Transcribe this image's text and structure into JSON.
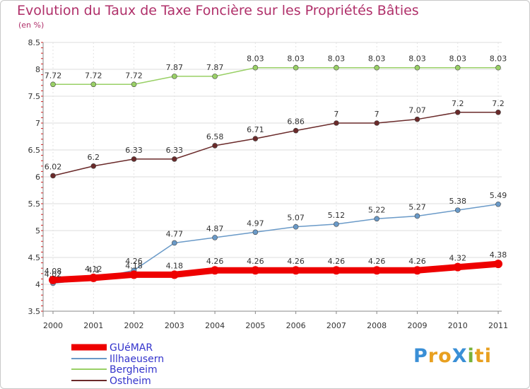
{
  "header": {
    "title": "Evolution du Taux de Taxe Foncière sur les Propriétés Bâties",
    "subtitle": "(en %)"
  },
  "chart_data": {
    "type": "line",
    "title": "Evolution du Taux de Taxe Foncière sur les Propriétés Bâties",
    "ylabel": "(en %)",
    "x": [
      "2000",
      "2001",
      "2002",
      "2003",
      "2004",
      "2005",
      "2006",
      "2007",
      "2008",
      "2009",
      "2010",
      "2011"
    ],
    "ylim": [
      3.5,
      8.5
    ],
    "yticks": [
      3.5,
      4,
      4.5,
      5,
      5.5,
      6,
      6.5,
      7,
      7.5,
      8,
      8.5
    ],
    "grid": true,
    "legend_position": "bottom-left",
    "series": [
      {
        "name": "GUéMAR",
        "color": "#ee0000",
        "width": "thick",
        "values": [
          4.08,
          4.12,
          4.18,
          4.18,
          4.26,
          4.26,
          4.26,
          4.26,
          4.26,
          4.26,
          4.32,
          4.38
        ]
      },
      {
        "name": "Illhaeusern",
        "color": "#6a9ac8",
        "width": "thin",
        "values": [
          4.02,
          4.1,
          4.26,
          4.77,
          4.87,
          4.97,
          5.07,
          5.12,
          5.22,
          5.27,
          5.38,
          5.49
        ]
      },
      {
        "name": "Bergheim",
        "color": "#99d066",
        "width": "thin",
        "values": [
          7.72,
          7.72,
          7.72,
          7.87,
          7.87,
          8.03,
          8.03,
          8.03,
          8.03,
          8.03,
          8.03,
          8.03
        ]
      },
      {
        "name": "Ostheim",
        "color": "#6a2a2a",
        "width": "thin",
        "values": [
          6.02,
          6.2,
          6.33,
          6.33,
          6.58,
          6.71,
          6.86,
          7,
          7,
          7.07,
          7.2,
          7.2
        ]
      }
    ],
    "data_labels": [
      {
        "series": "GUéMAR",
        "labels": [
          "4.08",
          "4.12",
          "4.18",
          "4.18",
          "4.26",
          "4.26",
          "4.26",
          "4.26",
          "4.26",
          "4.26",
          "4.32",
          "4.38"
        ]
      },
      {
        "series": "Illhaeusern",
        "labels": [
          "4.02",
          "4.1",
          "4.26",
          "4.77",
          "4.87",
          "4.97",
          "5.07",
          "5.12",
          "5.22",
          "5.27",
          "5.38",
          "5.49"
        ]
      },
      {
        "series": "Bergheim",
        "labels": [
          "7.72",
          "7.72",
          "7.72",
          "7.87",
          "7.87",
          "8.03",
          "8.03",
          "8.03",
          "8.03",
          "8.03",
          "8.03",
          "8.03"
        ]
      },
      {
        "series": "Ostheim",
        "labels": [
          "6.02",
          "6.2",
          "6.33",
          "6.33",
          "6.58",
          "6.71",
          "6.86",
          "7",
          "7",
          "7.07",
          "7.2",
          "7.2"
        ]
      }
    ]
  },
  "legend": {
    "items": [
      "GUéMAR",
      "Illhaeusern",
      "Bergheim",
      "Ostheim"
    ],
    "text_color": "#3333cc"
  },
  "logo": {
    "text": "ProXiti",
    "letters": [
      "P",
      "r",
      "o",
      "X",
      "i",
      "t",
      "i"
    ],
    "colors": [
      "#3a8fd6",
      "#e8a020",
      "#e8a020",
      "#3a8fd6",
      "#77b23a",
      "#e8a020",
      "#e8a020"
    ]
  }
}
